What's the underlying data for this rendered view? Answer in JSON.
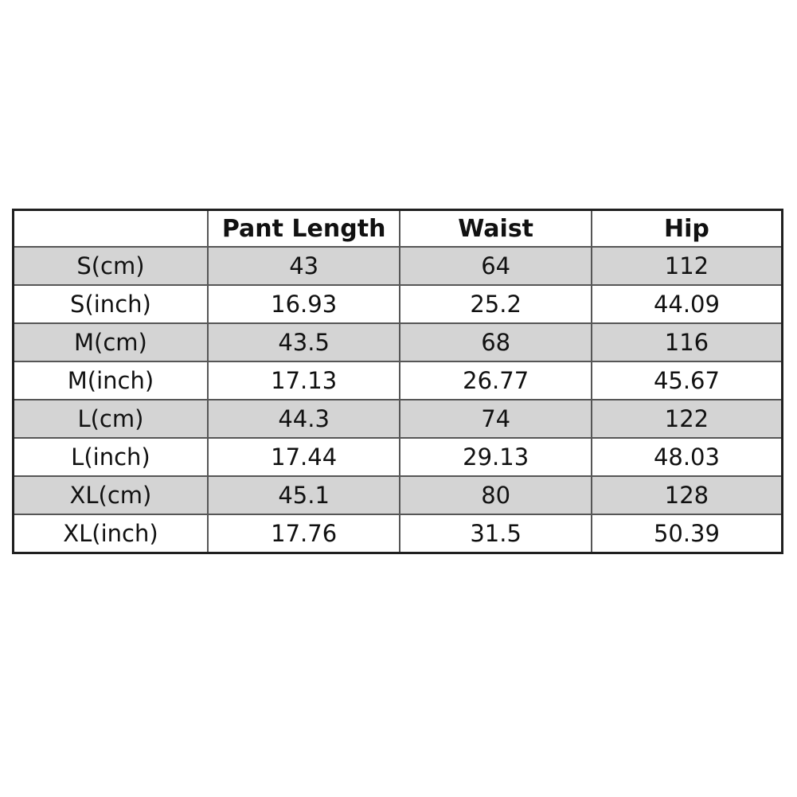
{
  "table": {
    "columns": [
      "",
      "Pant Length",
      "Waist",
      "Hip"
    ],
    "rows": [
      {
        "label": "S(cm)",
        "values": [
          "43",
          "64",
          "112"
        ]
      },
      {
        "label": "S(inch)",
        "values": [
          "16.93",
          "25.2",
          "44.09"
        ]
      },
      {
        "label": "M(cm)",
        "values": [
          "43.5",
          "68",
          "116"
        ]
      },
      {
        "label": "M(inch)",
        "values": [
          "17.13",
          "26.77",
          "45.67"
        ]
      },
      {
        "label": "L(cm)",
        "values": [
          "44.3",
          "74",
          "122"
        ]
      },
      {
        "label": "L(inch)",
        "values": [
          "17.44",
          "29.13",
          "48.03"
        ]
      },
      {
        "label": "XL(cm)",
        "values": [
          "45.1",
          "80",
          "128"
        ]
      },
      {
        "label": "XL(inch)",
        "values": [
          "17.76",
          "31.5",
          "50.39"
        ]
      }
    ],
    "colors": {
      "row_shaded": "#d4d4d4",
      "row_plain": "#ffffff",
      "border_outer": "#1f1f1f",
      "border_inner": "#565656",
      "text": "#111111"
    }
  }
}
